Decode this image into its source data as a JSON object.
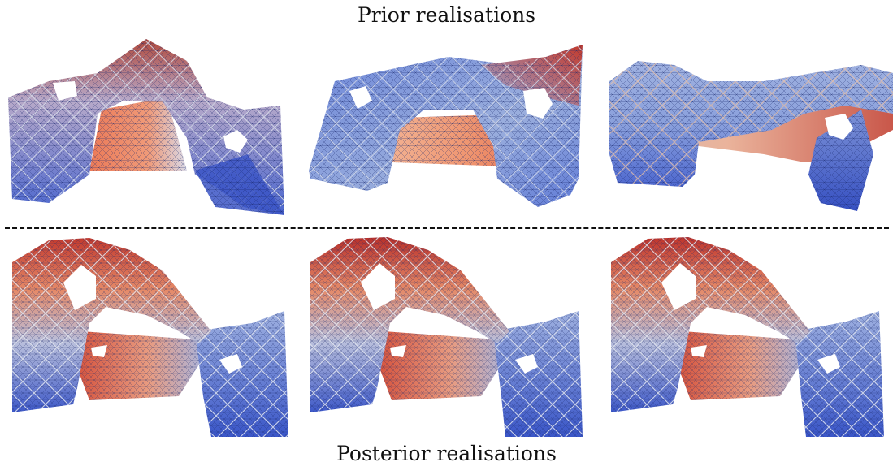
{
  "titles": {
    "top": "Prior realisations",
    "bottom": "Posterior realisations"
  },
  "colors": {
    "blue": "#3a56c8",
    "light_blue": "#8fa8e6",
    "red": "#c84030",
    "orange": "#ef8a60",
    "mesh_line": "#1c2a6e",
    "coarse_line": "#c9cfe0"
  },
  "panels": [
    {
      "group": "prior",
      "index": 1
    },
    {
      "group": "prior",
      "index": 2
    },
    {
      "group": "prior",
      "index": 3
    },
    {
      "group": "posterior",
      "index": 1
    },
    {
      "group": "posterior",
      "index": 2
    },
    {
      "group": "posterior",
      "index": 3
    }
  ]
}
